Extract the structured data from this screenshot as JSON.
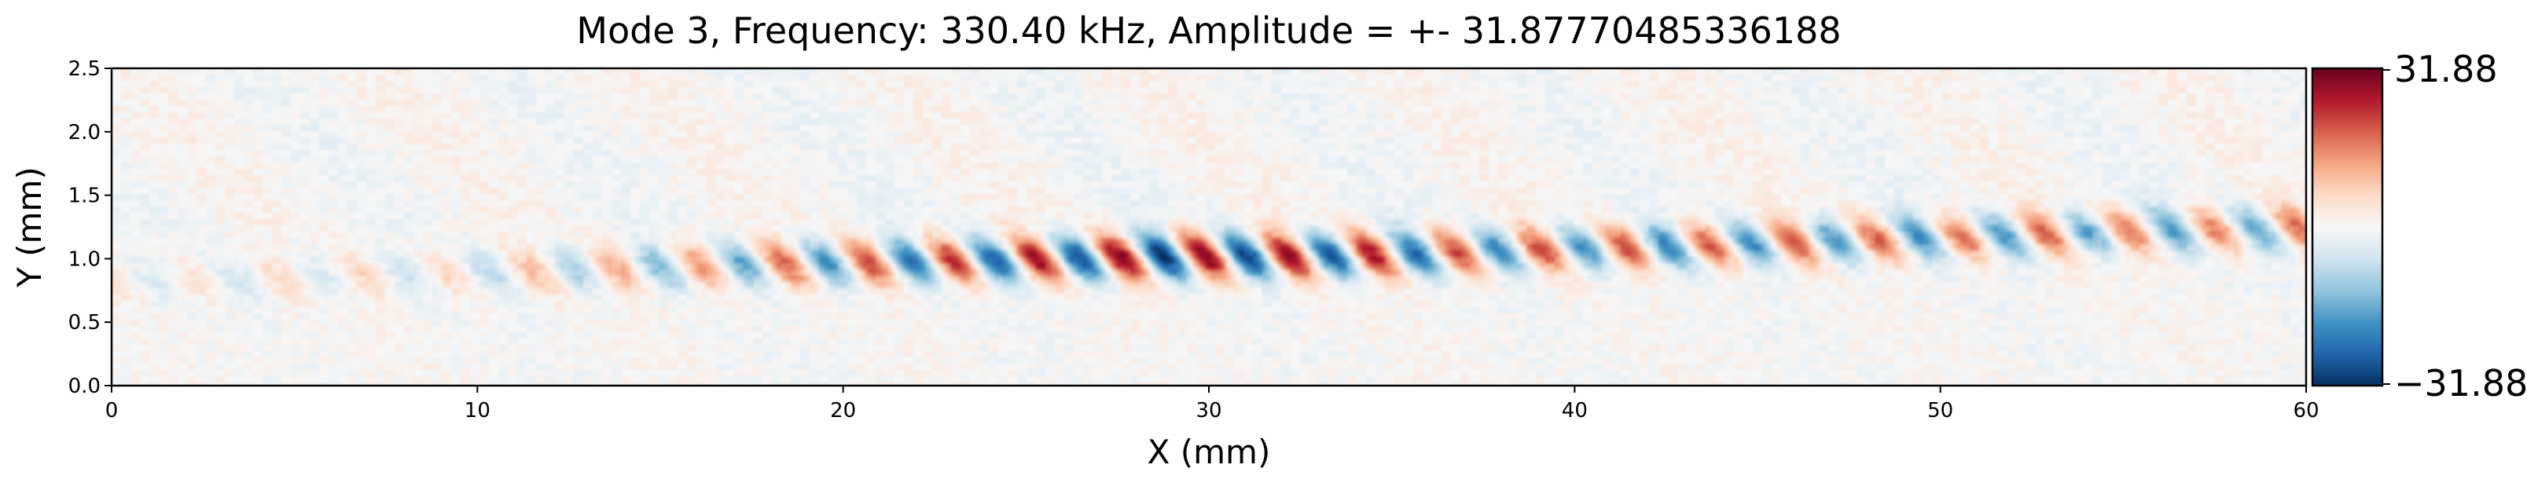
{
  "chart_data": {
    "type": "heatmap",
    "title": "Mode 3, Frequency: 330.40 kHz, Amplitude = +- 31.87770485336188",
    "xlabel": "X (mm)",
    "ylabel": "Y (mm)",
    "xlim": [
      0,
      60
    ],
    "ylim": [
      0,
      2.5
    ],
    "x_ticks": [
      "0",
      "10",
      "20",
      "30",
      "40",
      "50",
      "60"
    ],
    "y_ticks": [
      "0.0",
      "0.5",
      "1.0",
      "1.5",
      "2.0",
      "2.5"
    ],
    "grid": false,
    "colormap": "RdBu_r",
    "colorbar": {
      "min": -31.88,
      "max": 31.88,
      "min_label": "−31.88",
      "max_label": "31.88",
      "colors": [
        "#053061",
        "#2166ac",
        "#4393c3",
        "#92c5de",
        "#d1e5f0",
        "#f7f7f7",
        "#fddbc7",
        "#f4a582",
        "#d6604d",
        "#b2182b",
        "#67001f"
      ]
    },
    "field": {
      "amplitude": 31.8777,
      "wave_band": [
        {
          "x": 0,
          "y_center": 0.82,
          "envelope": 0.12
        },
        {
          "x": 4,
          "y_center": 0.84,
          "envelope": 0.16
        },
        {
          "x": 9,
          "y_center": 0.88,
          "envelope": 0.2
        },
        {
          "x": 15,
          "y_center": 0.94,
          "envelope": 0.42
        },
        {
          "x": 22,
          "y_center": 0.98,
          "envelope": 0.72
        },
        {
          "x": 26,
          "y_center": 1.0,
          "envelope": 0.88
        },
        {
          "x": 29,
          "y_center": 1.02,
          "envelope": 1.0
        },
        {
          "x": 33,
          "y_center": 1.02,
          "envelope": 0.88
        },
        {
          "x": 38,
          "y_center": 1.06,
          "envelope": 0.65
        },
        {
          "x": 45,
          "y_center": 1.12,
          "envelope": 0.62
        },
        {
          "x": 52,
          "y_center": 1.18,
          "envelope": 0.58
        },
        {
          "x": 56,
          "y_center": 1.22,
          "envelope": 0.52
        },
        {
          "x": 60,
          "y_center": 1.24,
          "envelope": 0.55
        }
      ],
      "wavelength": 2.3,
      "band_half_width": 0.13,
      "tilt": 0.6
    }
  }
}
